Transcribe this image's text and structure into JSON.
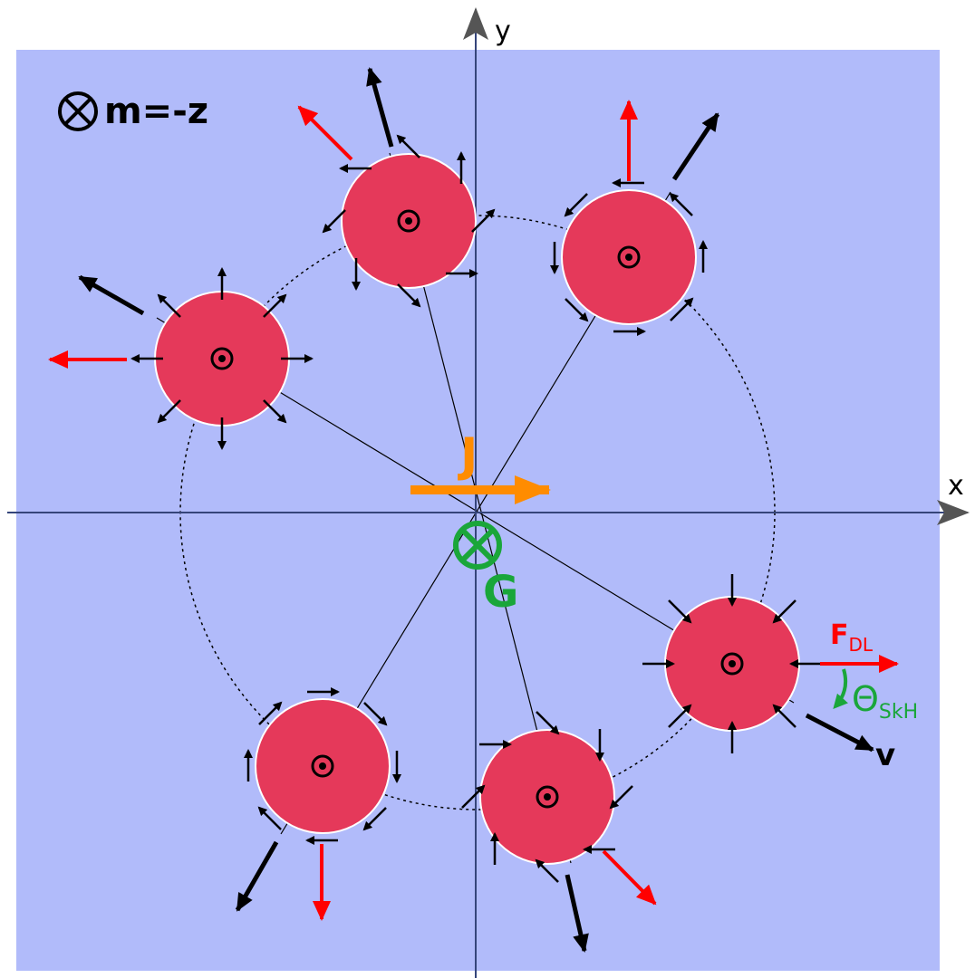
{
  "legend": {
    "symbol": "⊗",
    "text": "m=-z"
  },
  "axes": {
    "x_label": "x",
    "y_label": "y"
  },
  "current": {
    "label": "J"
  },
  "gyro": {
    "symbol": "⊗",
    "label": "G"
  },
  "force": {
    "main": "F",
    "sub": "DL"
  },
  "skh_angle": {
    "main": "Θ",
    "sub": "SkH"
  },
  "velocity": {
    "label": "v"
  },
  "colors": {
    "background": "#b1bbfa",
    "skyrmion_fill": "#e5395a",
    "force_arrow": "#ff0000",
    "current_arrow": "#ff8c00",
    "gyro_green": "#1aa63a",
    "axis": "#35457a"
  },
  "skyrmions": [
    {
      "name": "skyrmion-upper-left",
      "helicity_deg": 0
    },
    {
      "name": "skyrmion-top",
      "helicity_deg": 45
    },
    {
      "name": "skyrmion-upper-right",
      "helicity_deg": 90
    },
    {
      "name": "skyrmion-right",
      "helicity_deg": 180
    },
    {
      "name": "skyrmion-bottom",
      "helicity_deg": 225
    },
    {
      "name": "skyrmion-lower-left",
      "helicity_deg": 270
    }
  ]
}
